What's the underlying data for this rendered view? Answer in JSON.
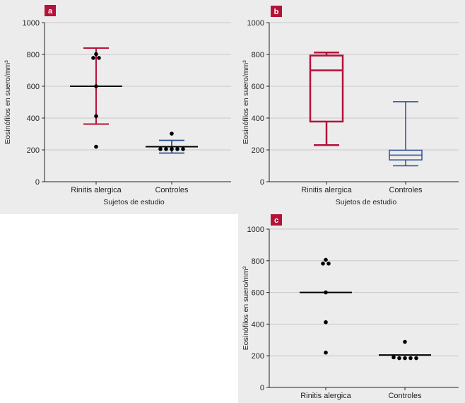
{
  "colors": {
    "red": "#b5123a",
    "blue": "#2b4f93",
    "black": "#000000",
    "badge": "#b5123a",
    "grid": "#c8c8c8"
  },
  "chart_data": [
    {
      "panel": "a",
      "type": "scatter",
      "subtype": "dot-plot-mean-sd",
      "label": "a",
      "ylabel": "Eosinófilos en suero/mm³",
      "xlabel": "Sujetos de estudio",
      "ylim": [
        0,
        1000
      ],
      "yticks": [
        0,
        200,
        400,
        600,
        800,
        1000
      ],
      "categories": [
        "Rinitis alergica",
        "Controles"
      ],
      "grid": true,
      "groups": [
        {
          "category": "Rinitis alergica",
          "color": "red",
          "center": 600,
          "upper": 840,
          "lower": 362,
          "points": [
            220,
            412,
            600,
            778,
            778,
            802
          ]
        },
        {
          "category": "Controles",
          "color": "blue",
          "center": 220,
          "upper": 260,
          "lower": 180,
          "points": [
            302,
            205,
            205,
            205,
            205,
            205
          ]
        }
      ]
    },
    {
      "panel": "b",
      "type": "box",
      "label": "b",
      "ylabel": "Eosinófilos en suero/mm³",
      "xlabel": "Sujetos de estudio",
      "ylim": [
        0,
        1000
      ],
      "yticks": [
        0,
        200,
        400,
        600,
        800,
        1000
      ],
      "categories": [
        "Rinitis alergica",
        "Controles"
      ],
      "grid": true,
      "boxes": [
        {
          "category": "Rinitis alergica",
          "color": "red",
          "min": 230,
          "q1": 378,
          "median": 700,
          "q3": 793,
          "max": 812
        },
        {
          "category": "Controles",
          "color": "blue",
          "min": 100,
          "q1": 137,
          "median": 167,
          "q3": 198,
          "max": 503
        }
      ]
    },
    {
      "panel": "c",
      "type": "scatter",
      "subtype": "dot-plot-median",
      "label": "c",
      "ylabel": "Eosinófilos en suero/mm³",
      "xlabel": "",
      "ylim": [
        0,
        1000
      ],
      "yticks": [
        0,
        200,
        400,
        600,
        800,
        1000
      ],
      "categories": [
        "Rinitis alergica",
        "Controles"
      ],
      "grid": true,
      "groups": [
        {
          "category": "Rinitis alergica",
          "color": "black",
          "center": 600,
          "points": [
            220,
            412,
            600,
            782,
            782,
            806
          ]
        },
        {
          "category": "Controles",
          "color": "black",
          "center": 205,
          "points": [
            288,
            190,
            185,
            185,
            185,
            185
          ]
        }
      ]
    }
  ]
}
